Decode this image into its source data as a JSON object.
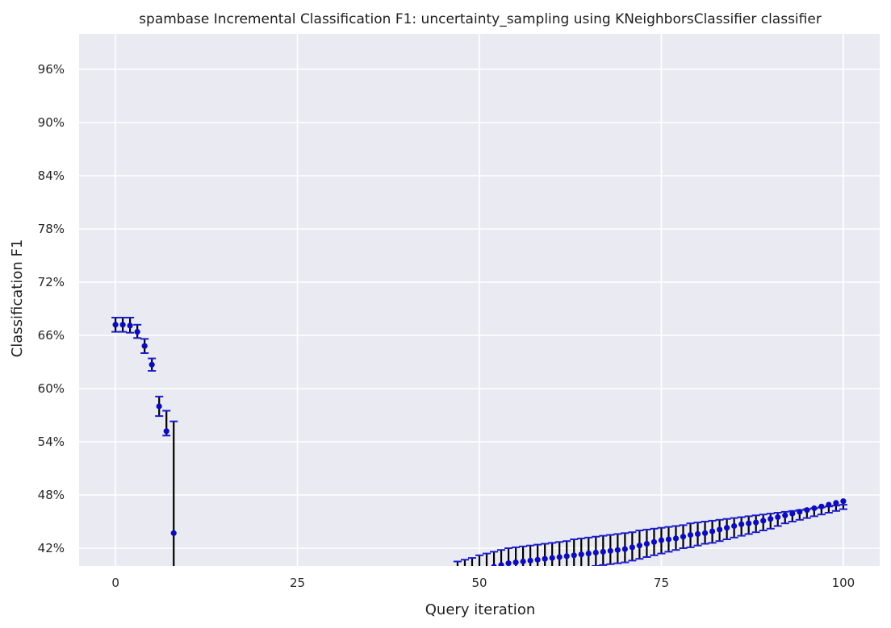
{
  "chart_data": {
    "type": "scatter",
    "title": "spambase Incremental Classification F1: uncertainty_sampling using KNeighborsClassifier classifier",
    "xlabel": "Query iteration",
    "ylabel": "Classification F1",
    "xlim": [
      -5,
      105
    ],
    "ylim": [
      0.4,
      1.0
    ],
    "x_ticks": [
      0,
      25,
      50,
      75,
      100
    ],
    "x_tick_labels": [
      "0",
      "25",
      "50",
      "75",
      "100"
    ],
    "y_ticks": [
      0.42,
      0.48,
      0.54,
      0.6,
      0.66,
      0.72,
      0.78,
      0.84,
      0.9,
      0.96
    ],
    "y_tick_labels": [
      "42%",
      "48%",
      "54%",
      "60%",
      "66%",
      "72%",
      "78%",
      "84%",
      "90%",
      "96%"
    ],
    "grid": true,
    "background_color": "#eaeaf2",
    "grid_color": "#ffffff",
    "point_color": "#0c0cbe",
    "errorbar_color": "#000000",
    "cap_color": "#1b1bd0",
    "series": [
      {
        "x": [
          0,
          1,
          2,
          3,
          4,
          5,
          6,
          7,
          8
        ],
        "y": [
          0.672,
          0.672,
          0.671,
          0.664,
          0.648,
          0.627,
          0.58,
          0.552,
          0.437
        ],
        "lower": [
          0.664,
          0.664,
          0.663,
          0.657,
          0.64,
          0.62,
          0.569,
          0.547,
          0.38
        ],
        "upper": [
          0.68,
          0.68,
          0.68,
          0.672,
          0.656,
          0.634,
          0.591,
          0.575,
          0.563
        ]
      },
      {
        "x": [
          47,
          48,
          49,
          50,
          51,
          52,
          53,
          54,
          55,
          56,
          57,
          58,
          59,
          60,
          61,
          62,
          63,
          64,
          65,
          66,
          67,
          68,
          69,
          70,
          71,
          72,
          73,
          74,
          75,
          76,
          77,
          78,
          79,
          80,
          81,
          82,
          83,
          84,
          85,
          86,
          87,
          88,
          89,
          90,
          91,
          92,
          93,
          94,
          95,
          96,
          97,
          98,
          99,
          100
        ],
        "y": [
          0.388,
          0.39,
          0.392,
          0.395,
          0.397,
          0.399,
          0.401,
          0.403,
          0.404,
          0.405,
          0.406,
          0.407,
          0.408,
          0.409,
          0.41,
          0.411,
          0.412,
          0.413,
          0.414,
          0.415,
          0.416,
          0.417,
          0.418,
          0.419,
          0.421,
          0.423,
          0.425,
          0.427,
          0.429,
          0.43,
          0.431,
          0.433,
          0.435,
          0.436,
          0.437,
          0.439,
          0.441,
          0.443,
          0.445,
          0.447,
          0.448,
          0.449,
          0.451,
          0.453,
          0.455,
          0.457,
          0.459,
          0.461,
          0.463,
          0.465,
          0.467,
          0.469,
          0.471,
          0.473
        ],
        "lower": [
          0.372,
          0.374,
          0.376,
          0.379,
          0.381,
          0.383,
          0.385,
          0.387,
          0.388,
          0.389,
          0.39,
          0.391,
          0.392,
          0.393,
          0.395,
          0.396,
          0.397,
          0.398,
          0.399,
          0.4,
          0.401,
          0.402,
          0.403,
          0.404,
          0.406,
          0.408,
          0.41,
          0.412,
          0.414,
          0.416,
          0.418,
          0.42,
          0.421,
          0.423,
          0.425,
          0.426,
          0.428,
          0.43,
          0.432,
          0.434,
          0.436,
          0.438,
          0.44,
          0.442,
          0.445,
          0.448,
          0.45,
          0.452,
          0.454,
          0.456,
          0.458,
          0.46,
          0.462,
          0.464
        ],
        "upper": [
          0.405,
          0.407,
          0.409,
          0.412,
          0.414,
          0.416,
          0.418,
          0.42,
          0.421,
          0.422,
          0.423,
          0.424,
          0.425,
          0.426,
          0.427,
          0.428,
          0.43,
          0.431,
          0.432,
          0.433,
          0.434,
          0.435,
          0.436,
          0.437,
          0.438,
          0.44,
          0.441,
          0.442,
          0.443,
          0.444,
          0.445,
          0.446,
          0.448,
          0.449,
          0.45,
          0.451,
          0.452,
          0.453,
          0.454,
          0.455,
          0.456,
          0.457,
          0.458,
          0.459,
          0.46,
          0.461,
          0.462,
          0.463,
          0.464,
          0.465,
          0.466,
          0.467,
          0.468,
          0.469
        ]
      }
    ]
  }
}
